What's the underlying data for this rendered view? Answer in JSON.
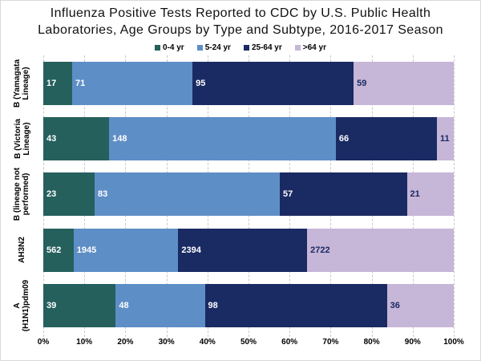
{
  "title": {
    "full": "Influenza Positive Tests Reported to CDC by U.S. Public Health Laboratories, Age Groups by Type and Subtype, 2016-2017 Season",
    "line1": "Influenza Positive Tests Reported to CDC by U.S. Public Health",
    "line2": "Laboratories, Age Groups by Type and Subtype, 2016-2017 Season"
  },
  "chart_data": {
    "type": "bar",
    "variant": "horizontal-stacked-100-percent",
    "categories": [
      "B (Yamagata\nLineage)",
      "B (Victoria\nLineage)",
      "B (lineage not\nperformed)",
      "AH3N2",
      "A\n(H1N1)pdm09"
    ],
    "series": [
      {
        "name": "0-4 yr",
        "color": "#25605D",
        "label_color": "#ffffff",
        "values": [
          17,
          43,
          23,
          562,
          39
        ]
      },
      {
        "name": "5-24 yr",
        "color": "#5E8EC6",
        "label_color": "#ffffff",
        "values": [
          71,
          148,
          83,
          1945,
          48
        ]
      },
      {
        "name": "25-64 yr",
        "color": "#1A2A63",
        "label_color": "#ffffff",
        "values": [
          95,
          66,
          57,
          2394,
          98
        ]
      },
      {
        "name": ">64 yr",
        "color": "#C6B6D7",
        "label_color": "#1A2A63",
        "values": [
          59,
          11,
          21,
          2722,
          36
        ]
      }
    ],
    "x_ticks": [
      "0%",
      "10%",
      "20%",
      "30%",
      "40%",
      "50%",
      "60%",
      "70%",
      "80%",
      "90%",
      "100%"
    ],
    "xlim": [
      0,
      100
    ],
    "grid": {
      "style": "dashed",
      "color": "#c9c9c9",
      "interval_percent": 10
    },
    "legend_position": "top-center",
    "xlabel": "",
    "ylabel": ""
  }
}
